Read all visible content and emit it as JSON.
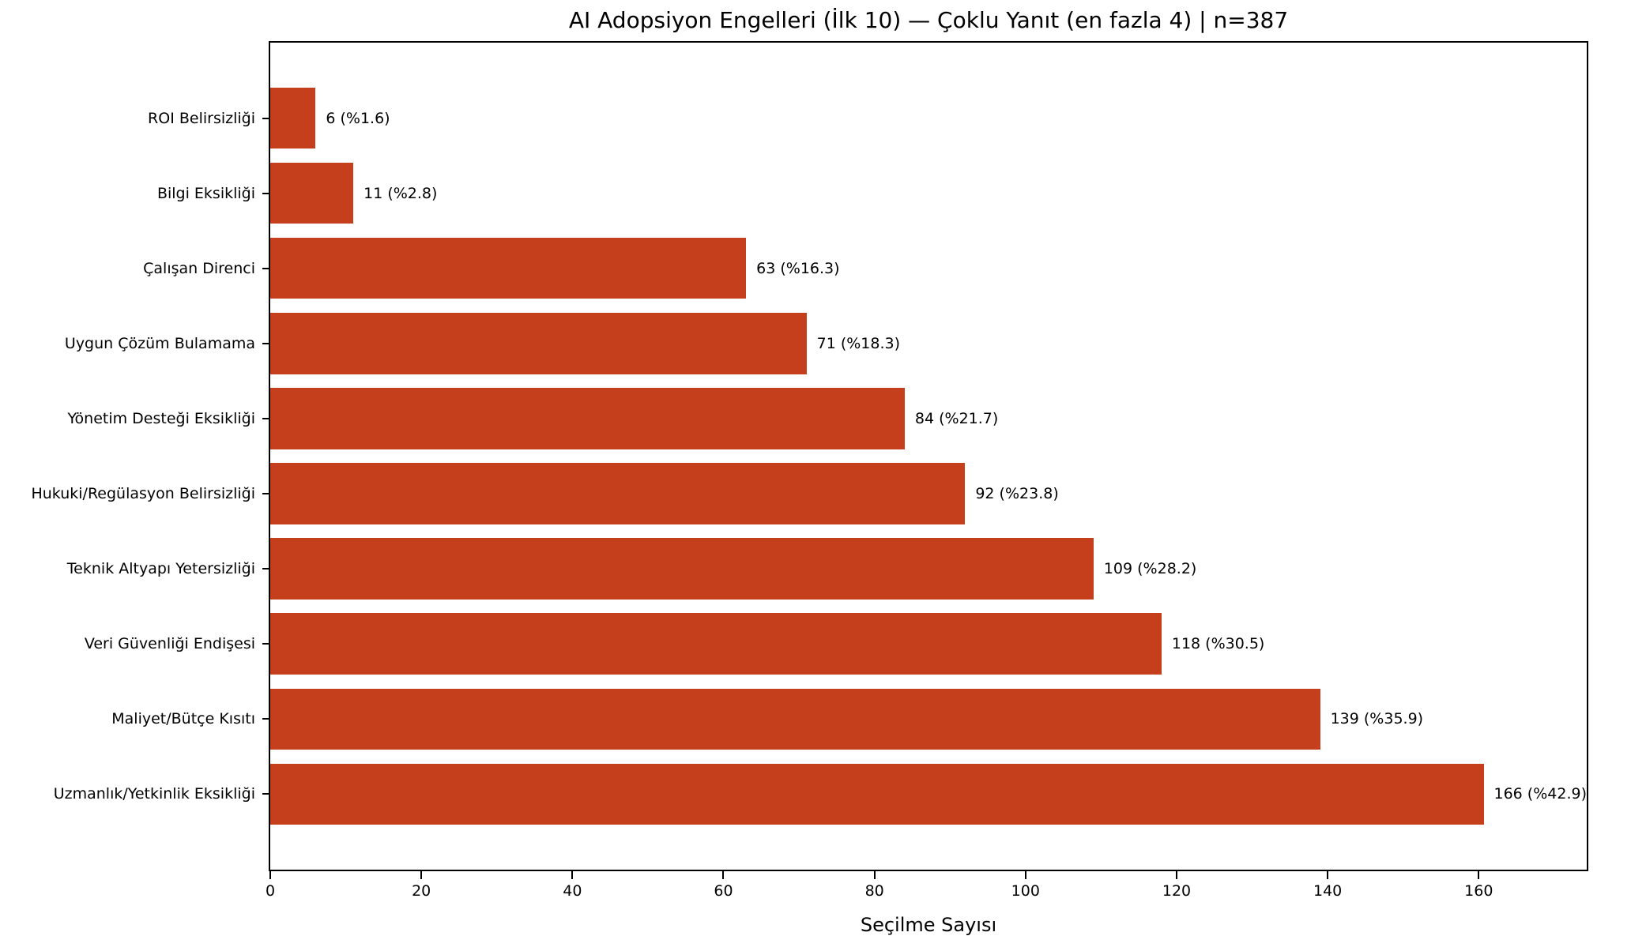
{
  "colors": {
    "bar": "#c53f1c",
    "axis": "#000000",
    "text": "#000000",
    "background": "#ffffff"
  },
  "chart_data": {
    "type": "bar",
    "orientation": "horizontal",
    "title": "AI Adopsiyon Engelleri (İlk 10) — Çoklu Yanıt (en fazla 4) | n=387",
    "xlabel": "Seçilme Sayısı",
    "ylabel": "",
    "sample_size": 387,
    "grid": false,
    "categories": [
      "ROI Belirsizliği",
      "Bilgi Eksikliği",
      "Çalışan Direnci",
      "Uygun Çözüm Bulamama",
      "Yönetim Desteği Eksikliği",
      "Hukuki/Regülasyon Belirsizliği",
      "Teknik Altyapı Yetersizliği",
      "Veri Güvenliği Endişesi",
      "Maliyet/Bütçe Kısıtı",
      "Uzmanlık/Yetkinlik Eksikliği"
    ],
    "values": [
      6,
      11,
      63,
      71,
      84,
      92,
      109,
      118,
      139,
      166
    ],
    "percentages": [
      1.6,
      2.8,
      16.3,
      18.3,
      21.7,
      23.8,
      28.2,
      30.5,
      35.9,
      42.9
    ],
    "bar_labels": [
      "6 (%1.6)",
      "11 (%2.8)",
      "63 (%16.3)",
      "71 (%18.3)",
      "84 (%21.7)",
      "92 (%23.8)",
      "109 (%28.2)",
      "118 (%30.5)",
      "139 (%35.9)",
      "166 (%42.9)"
    ],
    "xticks": [
      0,
      20,
      40,
      60,
      80,
      100,
      120,
      140,
      160
    ],
    "xlim": [
      0,
      174.3
    ]
  }
}
